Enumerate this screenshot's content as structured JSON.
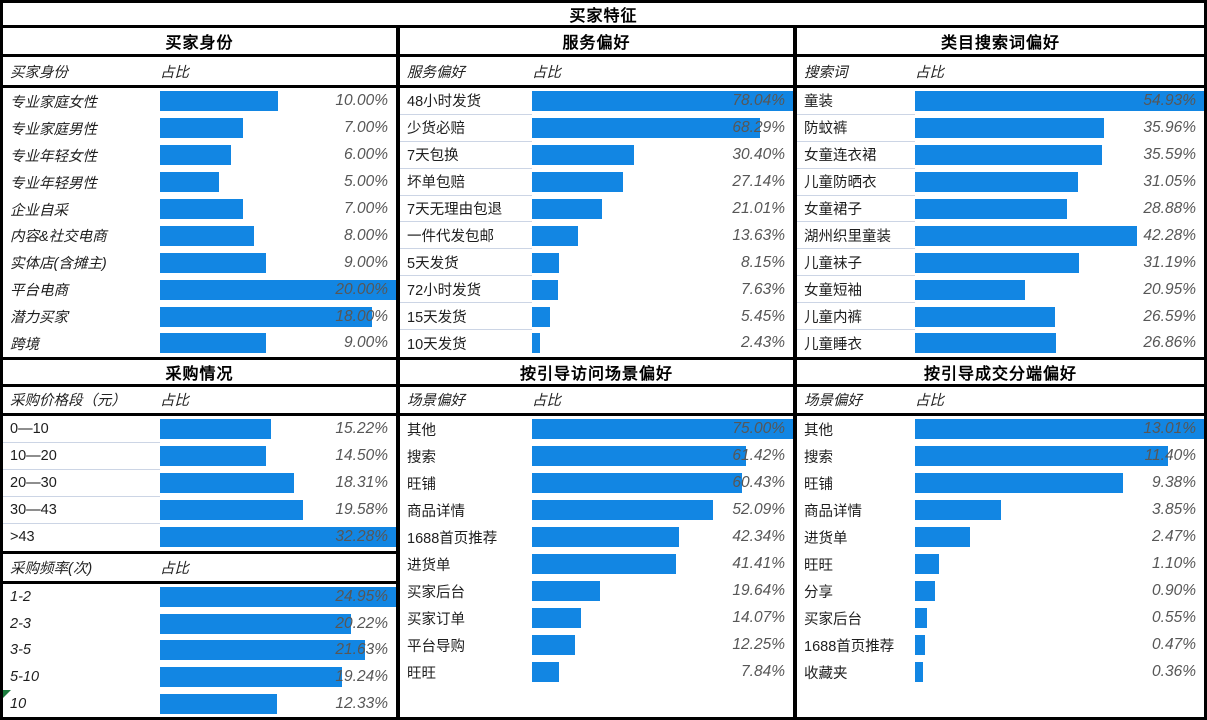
{
  "main_title": "买家特征",
  "colors": {
    "bar": "#1286e3",
    "pct_text": "#575757",
    "label_text": "#1e1e1e",
    "row_separator": "#ccd5e5",
    "border": "#000000",
    "error_triangle": "#1a7a3c"
  },
  "chart_data": [
    {
      "panel": "买家身份",
      "type": "bar",
      "sections": [
        {
          "col_label": "买家身份",
          "col_value": "占比",
          "categories": [
            "专业家庭女性",
            "专业家庭男性",
            "专业年轻女性",
            "专业年轻男性",
            "企业自采",
            "内容&社交电商",
            "实体店(含摊主)",
            "平台电商",
            "潜力买家",
            "跨境"
          ],
          "values": [
            10.0,
            7.0,
            6.0,
            5.0,
            7.0,
            8.0,
            9.0,
            20.0,
            18.0,
            9.0
          ]
        }
      ]
    },
    {
      "panel": "服务偏好",
      "type": "bar",
      "sections": [
        {
          "col_label": "服务偏好",
          "col_value": "占比",
          "categories": [
            "48小时发货",
            "少货必赔",
            "7天包换",
            "坏单包赔",
            "7天无理由包退",
            "一件代发包邮",
            "5天发货",
            "72小时发货",
            "15天发货",
            "10天发货"
          ],
          "values": [
            78.04,
            68.29,
            30.4,
            27.14,
            21.01,
            13.63,
            8.15,
            7.63,
            5.45,
            2.43
          ]
        }
      ]
    },
    {
      "panel": "类目搜索词偏好",
      "type": "bar",
      "sections": [
        {
          "col_label": "搜索词",
          "col_value": "占比",
          "categories": [
            "童装",
            "防蚊裤",
            "女童连衣裙",
            "儿童防晒衣",
            "女童裙子",
            "湖州织里童装",
            "儿童袜子",
            "女童短袖",
            "儿童内裤",
            "儿童睡衣"
          ],
          "values": [
            54.93,
            35.96,
            35.59,
            31.05,
            28.88,
            42.28,
            31.19,
            20.95,
            26.59,
            26.86
          ]
        }
      ]
    },
    {
      "panel": "采购情况",
      "type": "bar",
      "sections": [
        {
          "col_label": "采购价格段（元）",
          "col_value": "占比",
          "categories": [
            "0—10",
            "10—20",
            "20—30",
            "30—43",
            ">43"
          ],
          "values": [
            15.22,
            14.5,
            18.31,
            19.58,
            32.28
          ]
        },
        {
          "col_label": "采购频率(次)",
          "col_value": "占比",
          "categories": [
            "1-2",
            "2-3",
            "3-5",
            "5-10",
            "10"
          ],
          "values": [
            24.95,
            20.22,
            21.63,
            19.24,
            12.33
          ],
          "error_marker_category": "10"
        }
      ]
    },
    {
      "panel": "按引导访问场景偏好",
      "type": "bar",
      "sections": [
        {
          "col_label": "场景偏好",
          "col_value": "占比",
          "categories": [
            "其他",
            "搜索",
            "旺铺",
            "商品详情",
            "1688首页推荐",
            "进货单",
            "买家后台",
            "买家订单",
            "平台导购",
            "旺旺"
          ],
          "values": [
            75.0,
            61.42,
            60.43,
            52.09,
            42.34,
            41.41,
            19.64,
            14.07,
            12.25,
            7.84
          ]
        }
      ]
    },
    {
      "panel": "按引导成交分端偏好",
      "type": "bar",
      "sections": [
        {
          "col_label": "场景偏好",
          "col_value": "占比",
          "categories": [
            "其他",
            "搜索",
            "旺铺",
            "商品详情",
            "进货单",
            "旺旺",
            "分享",
            "买家后台",
            "1688首页推荐",
            "收藏夹"
          ],
          "values": [
            13.01,
            11.4,
            9.38,
            3.85,
            2.47,
            1.1,
            0.9,
            0.55,
            0.47,
            0.36
          ]
        }
      ]
    }
  ]
}
